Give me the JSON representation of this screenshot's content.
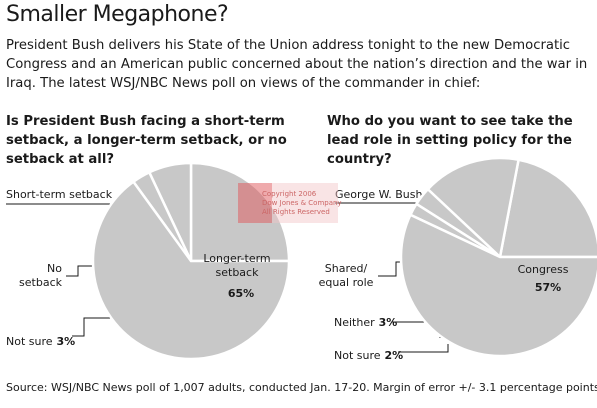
{
  "header": {
    "title": "Smaller Megaphone?",
    "intro": "President Bush delivers his State of the Union address tonight to the new Democratic Congress and an American public concerned about the nation’s direction and the war in Iraq. The latest WSJ/NBC News poll on views of the commander in chief:"
  },
  "watermark": [
    "Copyright 2006",
    "Dow Jones & Company",
    "All Rights Reserved"
  ],
  "footer": {
    "source": "Source: WSJ/NBC News poll of 1,007 adults, conducted Jan. 17-20. Margin of error +/- 3.1 percentage points"
  },
  "colors": {
    "slice_fill": "#c8c8c8",
    "slice_stroke": "#ffffff",
    "leader_line": "#1a1a1a",
    "watermark": "#e0555a"
  },
  "chart_data": [
    {
      "type": "pie",
      "title": "Is President Bush facing a short-term setback, a longer-term setback, or no setback at all?",
      "categories": [
        "Short-term setback",
        "No setback",
        "Not sure",
        "Longer-term setback"
      ],
      "values": [
        25,
        7,
        3,
        65
      ],
      "value_labels": [
        "25%",
        "7%",
        "3%",
        "65%"
      ],
      "category_labels": [
        [
          "Short-term setback"
        ],
        [
          "No",
          "setback"
        ],
        [
          "Not sure"
        ],
        [
          "Longer-term",
          "setback"
        ]
      ],
      "unit": "%",
      "start_angle_deg": 0,
      "direction": "counterclockwise"
    },
    {
      "type": "pie",
      "title": "Who do you want to see take the lead role in setting policy for the country?",
      "categories": [
        "George W. Bush",
        "Shared/equal role",
        "Neither",
        "Not sure",
        "Congress"
      ],
      "values": [
        22,
        16,
        3,
        2,
        57
      ],
      "value_labels": [
        "22%",
        "16%",
        "3%",
        "2%",
        "57%"
      ],
      "category_labels": [
        [
          "George W. Bush"
        ],
        [
          "Shared/",
          "equal role"
        ],
        [
          "Neither"
        ],
        [
          "Not sure"
        ],
        [
          "Congress"
        ]
      ],
      "unit": "%",
      "start_angle_deg": 0,
      "direction": "counterclockwise"
    }
  ]
}
